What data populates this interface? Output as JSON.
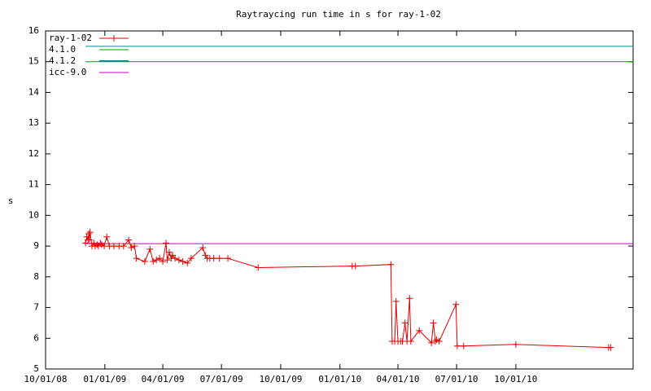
{
  "chart_data": {
    "type": "line",
    "title": "Raytraycing run time in s for ray-1-02",
    "ylabel": "s",
    "xlim": [
      "2008-10-01",
      "2011-04-01"
    ],
    "xticks": [
      {
        "value": "2008-10-01",
        "label": "10/01/08"
      },
      {
        "value": "2009-01-01",
        "label": "01/01/09"
      },
      {
        "value": "2009-04-01",
        "label": "04/01/09"
      },
      {
        "value": "2009-07-01",
        "label": "07/01/09"
      },
      {
        "value": "2009-10-01",
        "label": "10/01/09"
      },
      {
        "value": "2010-01-01",
        "label": "01/01/10"
      },
      {
        "value": "2010-04-01",
        "label": "04/01/10"
      },
      {
        "value": "2010-07-01",
        "label": "07/01/10"
      },
      {
        "value": "2010-10-01",
        "label": "10/01/10"
      }
    ],
    "ylim": [
      5,
      16
    ],
    "yticks": [
      5,
      6,
      7,
      8,
      9,
      10,
      11,
      12,
      13,
      14,
      15,
      16
    ],
    "legend": "top-left",
    "series": [
      {
        "name": "ray-1-02",
        "color": "#e00000",
        "markers": true,
        "x": [
          "2008-12-02",
          "2008-12-04",
          "2008-12-06",
          "2008-12-07",
          "2008-12-08",
          "2008-12-09",
          "2008-12-12",
          "2008-12-15",
          "2008-12-17",
          "2008-12-20",
          "2008-12-22",
          "2008-12-25",
          "2008-12-27",
          "2008-12-31",
          "2009-01-04",
          "2009-01-08",
          "2009-01-15",
          "2009-01-23",
          "2009-01-30",
          "2009-02-07",
          "2009-02-11",
          "2009-02-16",
          "2009-02-19",
          "2009-03-04",
          "2009-03-12",
          "2009-03-17",
          "2009-03-22",
          "2009-03-27",
          "2009-04-01",
          "2009-04-06",
          "2009-04-08",
          "2009-04-11",
          "2009-04-14",
          "2009-04-16",
          "2009-04-20",
          "2009-04-26",
          "2009-05-02",
          "2009-05-09",
          "2009-05-15",
          "2009-06-02",
          "2009-06-06",
          "2009-06-09",
          "2009-06-13",
          "2009-06-19",
          "2009-06-28",
          "2009-07-11",
          "2009-08-27",
          "2010-01-20",
          "2010-01-25",
          "2010-03-21",
          "2010-03-23",
          "2010-03-27",
          "2010-03-29",
          "2010-04-01",
          "2010-04-05",
          "2010-04-08",
          "2010-04-12",
          "2010-04-15",
          "2010-04-19",
          "2010-04-21",
          "2010-05-04",
          "2010-05-23",
          "2010-05-26",
          "2010-05-29",
          "2010-05-31",
          "2010-06-04",
          "2010-06-30",
          "2010-07-02",
          "2010-07-12",
          "2010-10-01",
          "2011-02-22",
          "2011-02-25"
        ],
        "values": [
          9.1,
          9.3,
          9.2,
          9.4,
          9.2,
          9.45,
          9.0,
          9.1,
          9.0,
          9.05,
          9.0,
          9.1,
          9.05,
          9.0,
          9.3,
          9.0,
          9.0,
          9.0,
          9.0,
          9.2,
          8.95,
          9.0,
          8.6,
          8.5,
          8.9,
          8.5,
          8.55,
          8.6,
          8.5,
          9.1,
          8.55,
          8.8,
          8.6,
          8.7,
          8.6,
          8.55,
          8.5,
          8.45,
          8.6,
          8.95,
          8.7,
          8.6,
          8.6,
          8.6,
          8.6,
          8.6,
          8.3,
          8.35,
          8.35,
          8.4,
          5.9,
          5.9,
          7.2,
          5.9,
          5.9,
          5.9,
          6.5,
          5.9,
          7.3,
          5.9,
          6.25,
          5.85,
          6.5,
          5.9,
          5.95,
          5.9,
          7.1,
          5.75,
          5.75,
          5.8,
          5.7,
          5.7
        ]
      },
      {
        "name": "4.1.0",
        "color": "#00a000",
        "x": [
          "2008-12-02",
          "2011-04-01"
        ],
        "values": [
          15.0,
          15.0
        ]
      },
      {
        "name": "4.1.2",
        "color": "#008b8b",
        "x": [
          "2008-12-02",
          "2011-04-01"
        ],
        "values": [
          15.5,
          15.5
        ]
      },
      {
        "name": "icc-9.0",
        "color": "#c000c0",
        "x": [
          "2008-12-02",
          "2011-04-01"
        ],
        "values": [
          9.08,
          9.08
        ]
      }
    ]
  }
}
